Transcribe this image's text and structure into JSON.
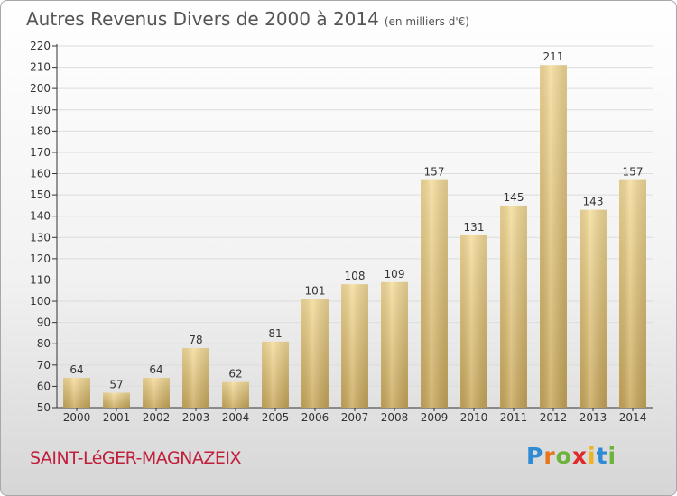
{
  "title": "Autres Revenus Divers de 2000 à 2014",
  "unit": "(en milliers d'€)",
  "commune": "SAINT-LéGER-MAGNAZEIX",
  "logo": {
    "letters": [
      "P",
      "r",
      "o",
      "x",
      "i",
      "t",
      "i"
    ],
    "colors": [
      "#2e8bd4",
      "#e8741c",
      "#6cb33e",
      "#e02a2a",
      "#f0b321",
      "#2e8bd4",
      "#6cb33e"
    ]
  },
  "colors": {
    "bar_top": "#f5dc9a",
    "bar_bottom": "#c8a75a",
    "title": "#555555",
    "commune": "#c0203c"
  },
  "chart_data": {
    "type": "bar",
    "title": "Autres Revenus Divers de 2000 à 2014",
    "categories": [
      "2000",
      "2001",
      "2002",
      "2003",
      "2004",
      "2005",
      "2006",
      "2007",
      "2008",
      "2009",
      "2010",
      "2011",
      "2012",
      "2013",
      "2014"
    ],
    "values": [
      64,
      57,
      64,
      78,
      62,
      81,
      101,
      108,
      109,
      157,
      131,
      145,
      211,
      143,
      157
    ],
    "ylim": [
      50,
      220
    ],
    "yticks": [
      50,
      60,
      70,
      80,
      90,
      100,
      110,
      120,
      130,
      140,
      150,
      160,
      170,
      180,
      190,
      200,
      210,
      220
    ],
    "grid": true,
    "xlabel": "",
    "ylabel": ""
  }
}
